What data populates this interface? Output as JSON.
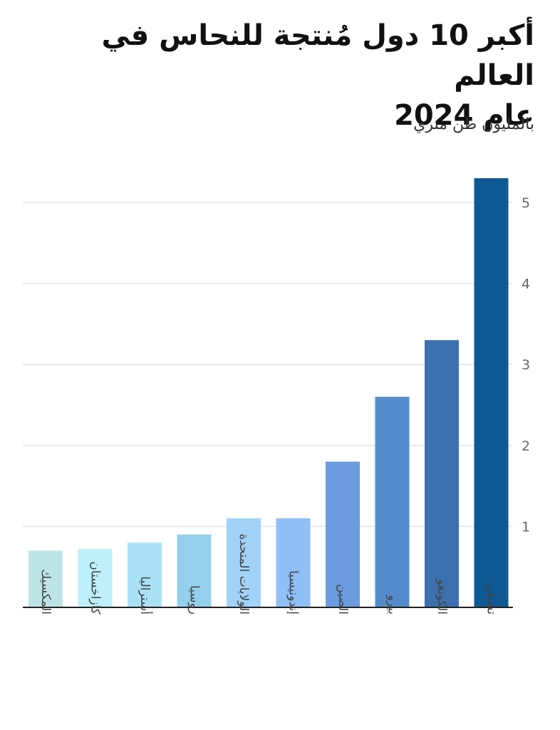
{
  "header": {
    "title_line1": "أكبر 10 دول مُنتجة للنحاس في العالم",
    "title_line2": "عام 2024",
    "subtitle": "بالمليون طن متري"
  },
  "chart_data": {
    "type": "bar",
    "title": "أكبر 10 دول مُنتجة للنحاس في العالم عام 2024",
    "subtitle": "بالمليون طن متري",
    "xlabel": "",
    "ylabel": "",
    "ylim": [
      0,
      5.5
    ],
    "yticks": [
      1,
      2,
      3,
      4,
      5
    ],
    "grid": true,
    "y_axis_side": "right",
    "categories": [
      "المكسيك",
      "كازاخستان",
      "أستراليا",
      "روسيا",
      "الولايات المتحدة",
      "إندونيسيا",
      "الصين",
      "بيرو",
      "الكونغو",
      "تشيلي"
    ],
    "values": [
      0.7,
      0.72,
      0.8,
      0.9,
      1.1,
      1.1,
      1.8,
      2.6,
      3.3,
      5.3
    ],
    "colors": [
      "#bde4e4",
      "#bdf0fa",
      "#a9e2f7",
      "#94d0ec",
      "#a1d2f7",
      "#8ebff6",
      "#6b9ce0",
      "#538bcd",
      "#3d70ae",
      "#0e5894"
    ]
  }
}
